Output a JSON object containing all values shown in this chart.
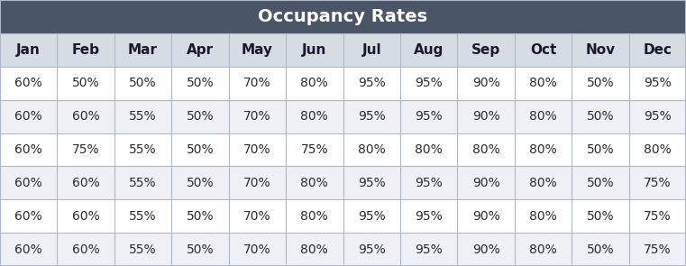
{
  "title": "Occupancy Rates",
  "title_bg_color": "#4a5568",
  "header_bg_color": "#d6dce4",
  "row_bg_colors": [
    "#ffffff",
    "#eef0f5",
    "#ffffff",
    "#eef0f5",
    "#ffffff",
    "#eef0f5"
  ],
  "columns": [
    "Jan",
    "Feb",
    "Mar",
    "Apr",
    "May",
    "Jun",
    "Jul",
    "Aug",
    "Sep",
    "Oct",
    "Nov",
    "Dec"
  ],
  "rows": [
    [
      "60%",
      "50%",
      "50%",
      "50%",
      "70%",
      "80%",
      "95%",
      "95%",
      "90%",
      "80%",
      "50%",
      "95%"
    ],
    [
      "60%",
      "60%",
      "55%",
      "50%",
      "70%",
      "80%",
      "95%",
      "95%",
      "90%",
      "80%",
      "50%",
      "95%"
    ],
    [
      "60%",
      "75%",
      "55%",
      "50%",
      "70%",
      "75%",
      "80%",
      "80%",
      "80%",
      "80%",
      "50%",
      "80%"
    ],
    [
      "60%",
      "60%",
      "55%",
      "50%",
      "70%",
      "80%",
      "95%",
      "95%",
      "90%",
      "80%",
      "50%",
      "75%"
    ],
    [
      "60%",
      "60%",
      "55%",
      "50%",
      "70%",
      "80%",
      "95%",
      "95%",
      "90%",
      "80%",
      "50%",
      "75%"
    ],
    [
      "60%",
      "60%",
      "55%",
      "50%",
      "70%",
      "80%",
      "95%",
      "95%",
      "90%",
      "80%",
      "50%",
      "75%"
    ]
  ],
  "title_font_color": "#ffffff",
  "header_font_color": "#1a1a2e",
  "data_font_color": "#2d2d2d",
  "title_fontsize": 14,
  "header_fontsize": 11,
  "data_fontsize": 10,
  "border_color": "#b0b8c8"
}
